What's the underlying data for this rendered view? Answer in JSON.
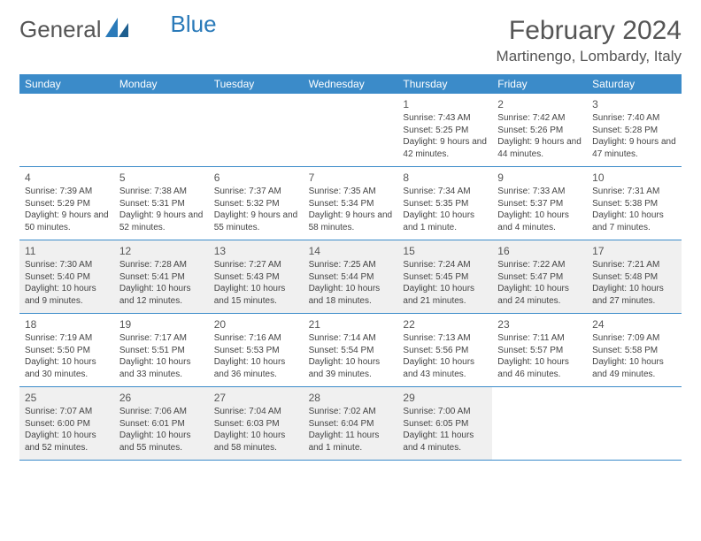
{
  "logo": {
    "textA": "General",
    "textB": "Blue"
  },
  "title": "February 2024",
  "location": "Martinengo, Lombardy, Italy",
  "colors": {
    "headerBar": "#3b8bc9",
    "shadeRow": "#f0f0f0",
    "text": "#444444",
    "logoBlue": "#2a7ab9"
  },
  "dayNames": [
    "Sunday",
    "Monday",
    "Tuesday",
    "Wednesday",
    "Thursday",
    "Friday",
    "Saturday"
  ],
  "weeks": [
    {
      "shaded": false,
      "days": [
        null,
        null,
        null,
        null,
        {
          "n": "1",
          "sr": "7:43 AM",
          "ss": "5:25 PM",
          "dl": "9 hours and 42 minutes."
        },
        {
          "n": "2",
          "sr": "7:42 AM",
          "ss": "5:26 PM",
          "dl": "9 hours and 44 minutes."
        },
        {
          "n": "3",
          "sr": "7:40 AM",
          "ss": "5:28 PM",
          "dl": "9 hours and 47 minutes."
        }
      ]
    },
    {
      "shaded": false,
      "days": [
        {
          "n": "4",
          "sr": "7:39 AM",
          "ss": "5:29 PM",
          "dl": "9 hours and 50 minutes."
        },
        {
          "n": "5",
          "sr": "7:38 AM",
          "ss": "5:31 PM",
          "dl": "9 hours and 52 minutes."
        },
        {
          "n": "6",
          "sr": "7:37 AM",
          "ss": "5:32 PM",
          "dl": "9 hours and 55 minutes."
        },
        {
          "n": "7",
          "sr": "7:35 AM",
          "ss": "5:34 PM",
          "dl": "9 hours and 58 minutes."
        },
        {
          "n": "8",
          "sr": "7:34 AM",
          "ss": "5:35 PM",
          "dl": "10 hours and 1 minute."
        },
        {
          "n": "9",
          "sr": "7:33 AM",
          "ss": "5:37 PM",
          "dl": "10 hours and 4 minutes."
        },
        {
          "n": "10",
          "sr": "7:31 AM",
          "ss": "5:38 PM",
          "dl": "10 hours and 7 minutes."
        }
      ]
    },
    {
      "shaded": true,
      "days": [
        {
          "n": "11",
          "sr": "7:30 AM",
          "ss": "5:40 PM",
          "dl": "10 hours and 9 minutes."
        },
        {
          "n": "12",
          "sr": "7:28 AM",
          "ss": "5:41 PM",
          "dl": "10 hours and 12 minutes."
        },
        {
          "n": "13",
          "sr": "7:27 AM",
          "ss": "5:43 PM",
          "dl": "10 hours and 15 minutes."
        },
        {
          "n": "14",
          "sr": "7:25 AM",
          "ss": "5:44 PM",
          "dl": "10 hours and 18 minutes."
        },
        {
          "n": "15",
          "sr": "7:24 AM",
          "ss": "5:45 PM",
          "dl": "10 hours and 21 minutes."
        },
        {
          "n": "16",
          "sr": "7:22 AM",
          "ss": "5:47 PM",
          "dl": "10 hours and 24 minutes."
        },
        {
          "n": "17",
          "sr": "7:21 AM",
          "ss": "5:48 PM",
          "dl": "10 hours and 27 minutes."
        }
      ]
    },
    {
      "shaded": false,
      "days": [
        {
          "n": "18",
          "sr": "7:19 AM",
          "ss": "5:50 PM",
          "dl": "10 hours and 30 minutes."
        },
        {
          "n": "19",
          "sr": "7:17 AM",
          "ss": "5:51 PM",
          "dl": "10 hours and 33 minutes."
        },
        {
          "n": "20",
          "sr": "7:16 AM",
          "ss": "5:53 PM",
          "dl": "10 hours and 36 minutes."
        },
        {
          "n": "21",
          "sr": "7:14 AM",
          "ss": "5:54 PM",
          "dl": "10 hours and 39 minutes."
        },
        {
          "n": "22",
          "sr": "7:13 AM",
          "ss": "5:56 PM",
          "dl": "10 hours and 43 minutes."
        },
        {
          "n": "23",
          "sr": "7:11 AM",
          "ss": "5:57 PM",
          "dl": "10 hours and 46 minutes."
        },
        {
          "n": "24",
          "sr": "7:09 AM",
          "ss": "5:58 PM",
          "dl": "10 hours and 49 minutes."
        }
      ]
    },
    {
      "shaded": true,
      "days": [
        {
          "n": "25",
          "sr": "7:07 AM",
          "ss": "6:00 PM",
          "dl": "10 hours and 52 minutes."
        },
        {
          "n": "26",
          "sr": "7:06 AM",
          "ss": "6:01 PM",
          "dl": "10 hours and 55 minutes."
        },
        {
          "n": "27",
          "sr": "7:04 AM",
          "ss": "6:03 PM",
          "dl": "10 hours and 58 minutes."
        },
        {
          "n": "28",
          "sr": "7:02 AM",
          "ss": "6:04 PM",
          "dl": "11 hours and 1 minute."
        },
        {
          "n": "29",
          "sr": "7:00 AM",
          "ss": "6:05 PM",
          "dl": "11 hours and 4 minutes."
        },
        null,
        null
      ]
    }
  ],
  "labels": {
    "sunrise": "Sunrise: ",
    "sunset": "Sunset: ",
    "daylight": "Daylight: "
  }
}
